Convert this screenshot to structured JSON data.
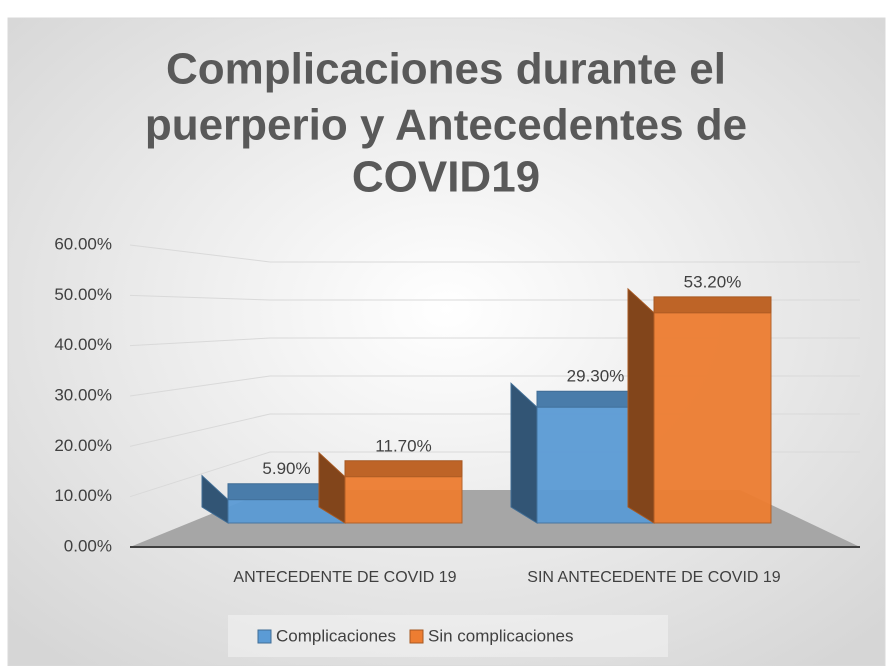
{
  "chart_data": {
    "type": "bar",
    "title": [
      "Complicaciones durante el",
      "puerperio y Antecedentes de",
      "COVID19"
    ],
    "categories": [
      "ANTECEDENTE DE COVID 19",
      "SIN ANTECEDENTE DE COVID 19"
    ],
    "series": [
      {
        "name": "Complicaciones",
        "color": "#5b9bd5",
        "values": [
          5.9,
          29.3
        ],
        "value_labels": [
          "5.90%",
          "29.30%"
        ]
      },
      {
        "name": "Sin complicaciones",
        "color": "#ed7d31",
        "values": [
          11.7,
          53.2
        ],
        "value_labels": [
          "11.70%",
          "53.20%"
        ]
      }
    ],
    "ylim": [
      0,
      60
    ],
    "yticks": [
      {
        "value": 0,
        "label": "0.00%"
      },
      {
        "value": 10,
        "label": "10.00%"
      },
      {
        "value": 20,
        "label": "20.00%"
      },
      {
        "value": 30,
        "label": "30.00%"
      },
      {
        "value": 40,
        "label": "40.00%"
      },
      {
        "value": 50,
        "label": "50.00%"
      },
      {
        "value": 60,
        "label": "60.00%"
      }
    ],
    "grid": true,
    "legend": "bottom"
  }
}
